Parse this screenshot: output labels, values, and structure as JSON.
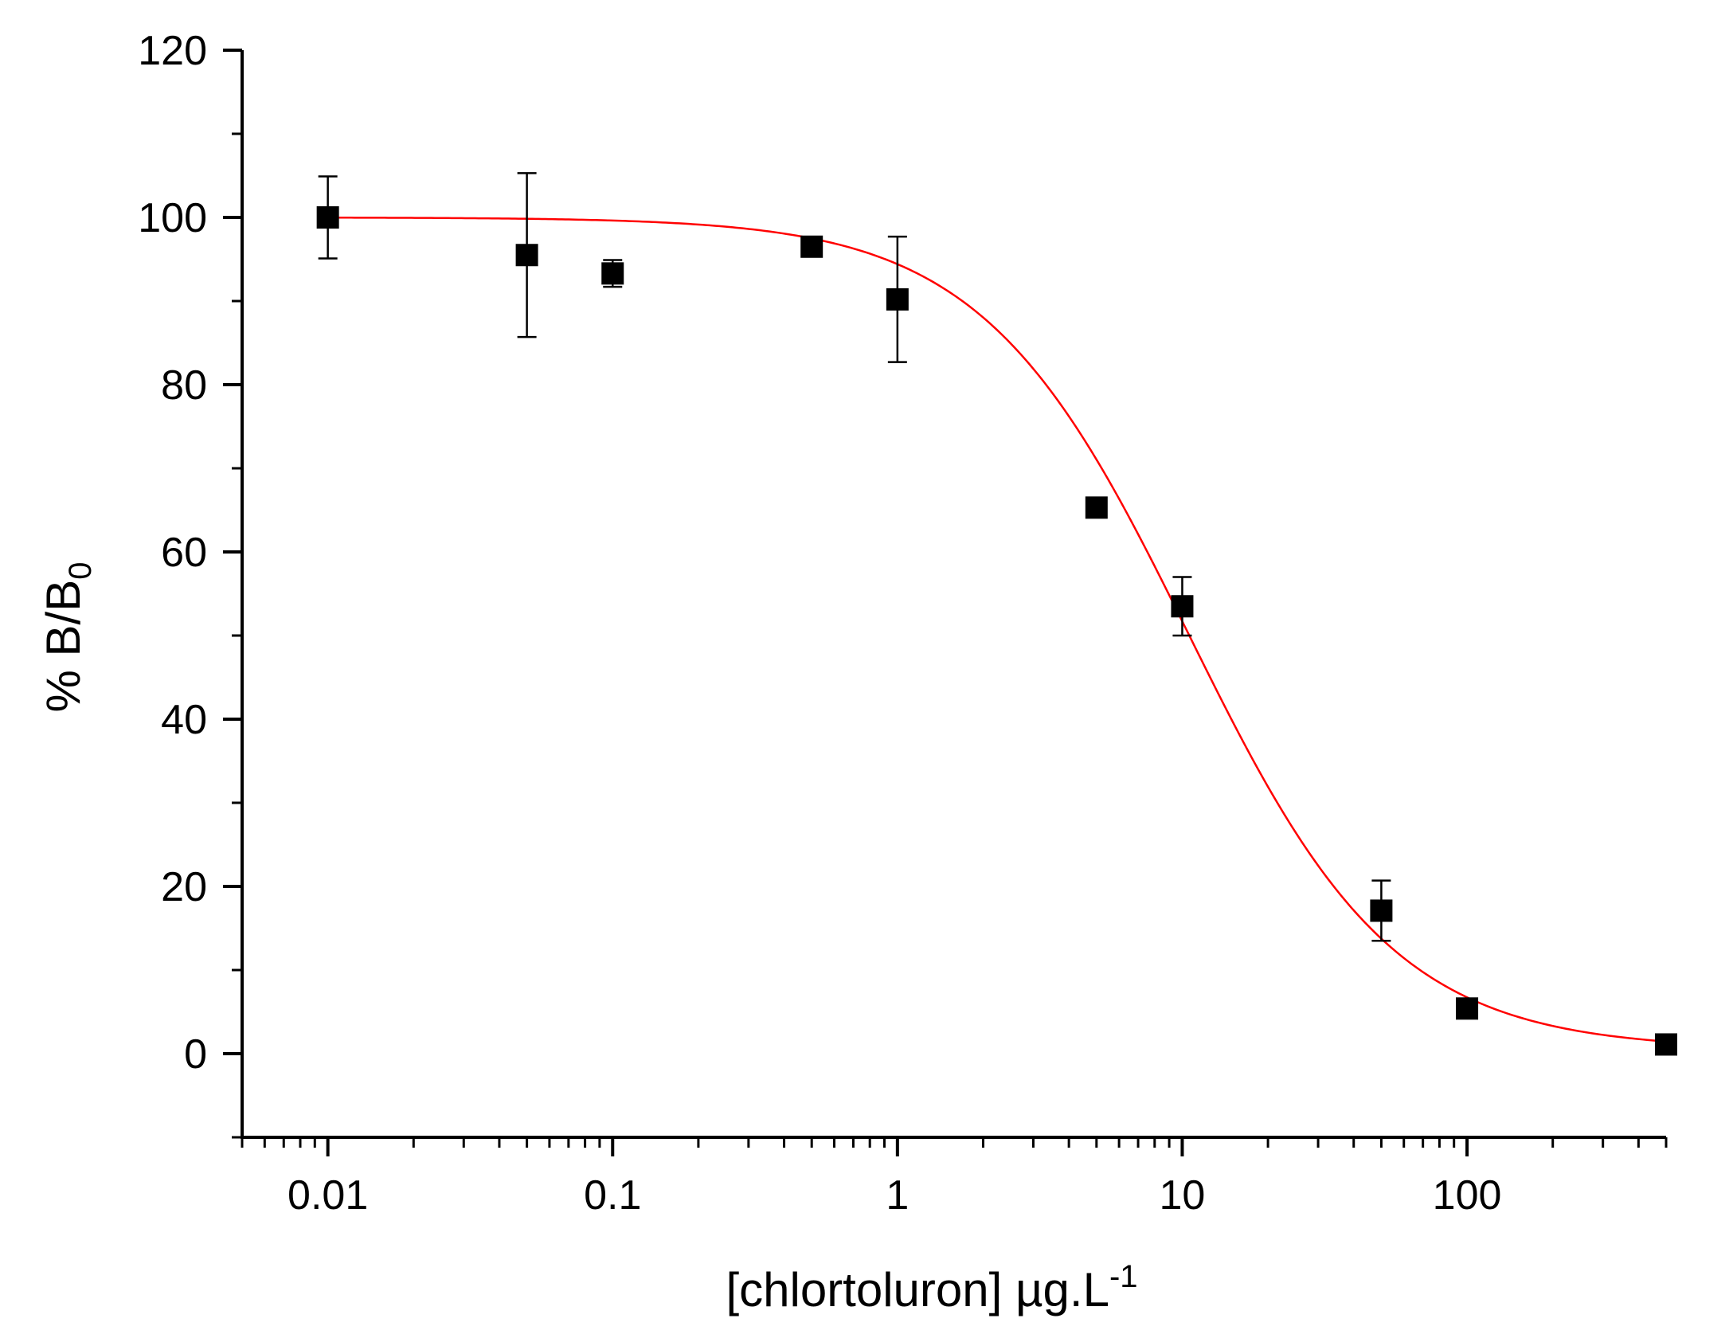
{
  "chart_data": {
    "type": "scatter",
    "title": "",
    "xlabel": "[chlortoluron] µg.L",
    "xlabel_superscript": "-1",
    "ylabel": "% B/B",
    "ylabel_subscript": "0",
    "xscale": "log",
    "xlim": [
      0.005,
      500
    ],
    "ylim": [
      -10,
      120
    ],
    "x_ticks": [
      0.01,
      0.1,
      1,
      10,
      100
    ],
    "x_tick_labels": [
      "0.01",
      "0.1",
      "1",
      "10",
      "100"
    ],
    "y_ticks": [
      0,
      20,
      40,
      60,
      80,
      100,
      120
    ],
    "y_tick_labels": [
      "0",
      "20",
      "40",
      "60",
      "80",
      "100",
      "120"
    ],
    "grid": false,
    "legend": "none",
    "series": [
      {
        "kind": "points",
        "marker": "square",
        "color": "#000000",
        "x": [
          0.01,
          0.05,
          0.1,
          0.5,
          1,
          5,
          10,
          50,
          100,
          500
        ],
        "y": [
          100,
          95.5,
          93.3,
          96.5,
          90.2,
          65.3,
          53.5,
          17.1,
          5.4,
          1.1
        ],
        "yerr": [
          4.9,
          9.8,
          1.6,
          0.5,
          7.5,
          0.4,
          3.5,
          3.6,
          0.4,
          0.3
        ]
      },
      {
        "kind": "fit",
        "model": "four-parameter logistic",
        "color": "#ff0000",
        "top": 100,
        "bottom": 0.5,
        "ic50": 10.5,
        "hill": 1.2
      }
    ]
  }
}
